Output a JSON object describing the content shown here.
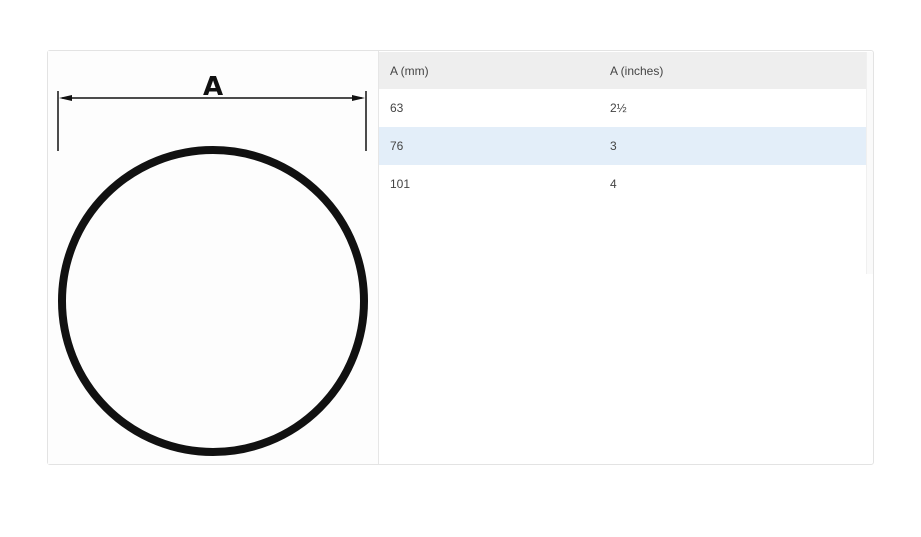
{
  "figure": {
    "dimension_label": "A"
  },
  "table": {
    "headers": [
      "A (mm)",
      "A (inches)"
    ],
    "rows": [
      [
        "63",
        "2½"
      ],
      [
        "76",
        "3"
      ],
      [
        "101",
        "4"
      ]
    ],
    "highlight_color": "#e3eef9"
  }
}
